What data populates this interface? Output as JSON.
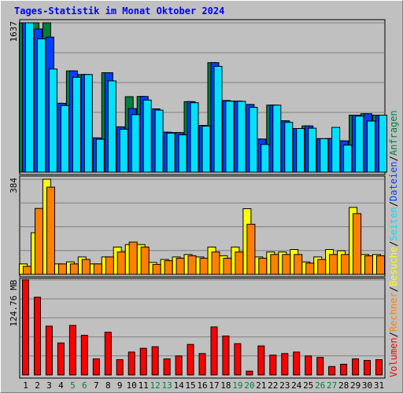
{
  "title": "Tages-Statistik im Monat Oktober 2024",
  "colors": {
    "background": "#c0c0c0",
    "panel": "#c0c0c0",
    "grid": "#808080",
    "hits": "#008040",
    "files": "#0040ff",
    "pages": "#00e0ff",
    "visits": "#ffff00",
    "sites": "#ff8000",
    "volume": "#ff0000",
    "weekend_label": "#008040",
    "title": "#0000ff"
  },
  "chart_data": [
    {
      "type": "bar",
      "panel": "top",
      "ymax_label": "1637",
      "ylim": [
        0,
        1637
      ],
      "categories": [
        "1",
        "2",
        "3",
        "4",
        "5",
        "6",
        "7",
        "8",
        "9",
        "10",
        "11",
        "12",
        "13",
        "14",
        "15",
        "16",
        "17",
        "18",
        "19",
        "20",
        "21",
        "22",
        "23",
        "24",
        "25",
        "26",
        "27",
        "28",
        "29",
        "30",
        "31"
      ],
      "weekend_categories": [
        "5",
        "6",
        "12",
        "13",
        "19",
        "20",
        "26",
        "27"
      ],
      "series": [
        {
          "name": "Anfragen",
          "values": [
            1637,
            1637,
            1637,
            755,
            1110,
            1070,
            376,
            1090,
            496,
            827,
            830,
            694,
            438,
            433,
            773,
            512,
            1200,
            785,
            779,
            742,
            363,
            735,
            563,
            478,
            507,
            367,
            369,
            343,
            625,
            640,
            625
          ]
        },
        {
          "name": "Dateien",
          "values": [
            1637,
            1570,
            1480,
            755,
            1110,
            1070,
            376,
            1090,
            496,
            697,
            830,
            694,
            438,
            433,
            773,
            512,
            1200,
            785,
            779,
            742,
            363,
            735,
            563,
            478,
            507,
            367,
            369,
            343,
            625,
            640,
            625
          ]
        },
        {
          "name": "Seiten",
          "values": [
            1637,
            1460,
            1130,
            730,
            1040,
            1070,
            360,
            1000,
            470,
            630,
            790,
            680,
            427,
            408,
            761,
            505,
            1160,
            778,
            776,
            710,
            303,
            734,
            545,
            478,
            482,
            366,
            490,
            296,
            614,
            560,
            625
          ]
        }
      ]
    },
    {
      "type": "bar",
      "panel": "middle",
      "ymax_label": "384",
      "ylim": [
        0,
        384
      ],
      "categories": [
        "1",
        "2",
        "3",
        "4",
        "5",
        "6",
        "7",
        "8",
        "9",
        "10",
        "11",
        "12",
        "13",
        "14",
        "15",
        "16",
        "17",
        "18",
        "19",
        "20",
        "21",
        "22",
        "23",
        "24",
        "25",
        "26",
        "27",
        "28",
        "29",
        "30",
        "31"
      ],
      "series": [
        {
          "name": "Besuche",
          "values": [
            42,
            168,
            384,
            42,
            50,
            70,
            42,
            70,
            110,
            120,
            120,
            48,
            60,
            70,
            80,
            70,
            110,
            75,
            110,
            265,
            70,
            90,
            90,
            100,
            50,
            70,
            100,
            95,
            270,
            80,
            80
          ]
        },
        {
          "name": "Rechner",
          "values": [
            32,
            266,
            352,
            42,
            42,
            60,
            42,
            70,
            90,
            130,
            110,
            40,
            55,
            65,
            75,
            65,
            90,
            65,
            90,
            202,
            65,
            80,
            80,
            80,
            45,
            60,
            80,
            80,
            245,
            75,
            75
          ]
        }
      ]
    },
    {
      "type": "bar",
      "panel": "bottom",
      "ymax_label": "124.76 MB",
      "ylim": [
        0,
        124.76
      ],
      "categories": [
        "1",
        "2",
        "3",
        "4",
        "5",
        "6",
        "7",
        "8",
        "9",
        "10",
        "11",
        "12",
        "13",
        "14",
        "15",
        "16",
        "17",
        "18",
        "19",
        "20",
        "21",
        "22",
        "23",
        "24",
        "25",
        "26",
        "27",
        "28",
        "29",
        "30",
        "31"
      ],
      "series": [
        {
          "name": "Volumen",
          "values": [
            124.76,
            102,
            64,
            42,
            65,
            52,
            21,
            56,
            20,
            30,
            35,
            37,
            21,
            25,
            40,
            28,
            63,
            51,
            41,
            5,
            38,
            26,
            28,
            30,
            25,
            23,
            11,
            14,
            21,
            19,
            20
          ]
        }
      ]
    }
  ],
  "legend": {
    "upper": [
      "Anfragen",
      "/",
      "Dateien",
      "/",
      "Seiten",
      "/",
      "Besuche",
      "/",
      "Rechner",
      "/",
      "Volumen"
    ]
  }
}
